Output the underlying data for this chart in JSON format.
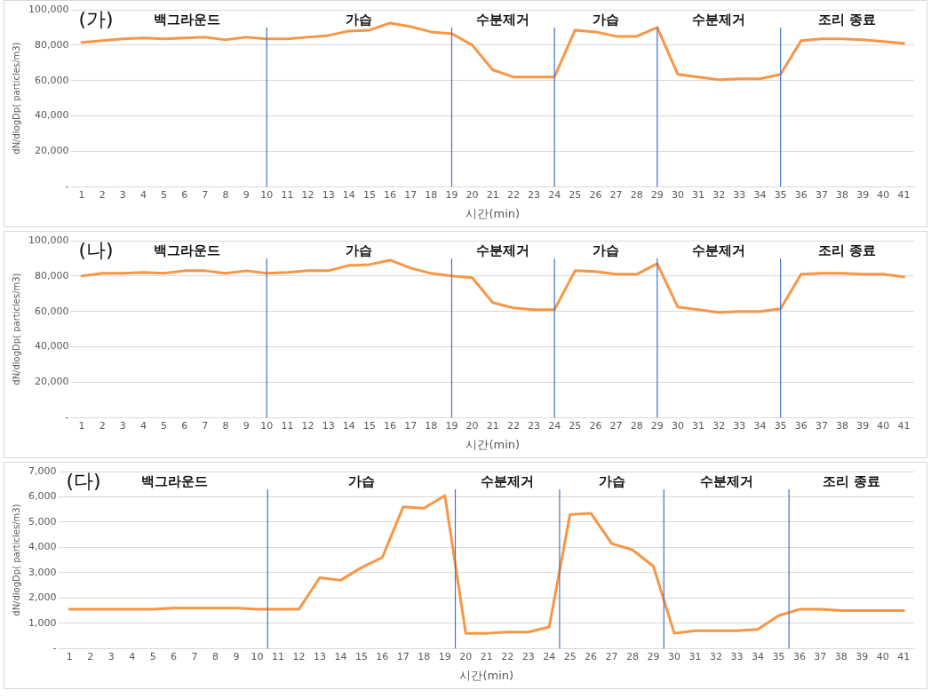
{
  "chart_data": [
    {
      "type": "line",
      "title": "(가)",
      "xlabel": "시간(min)",
      "ylabel": "dN/dlogDp( particles/m3)",
      "x": [
        1,
        2,
        3,
        4,
        5,
        6,
        7,
        8,
        9,
        10,
        11,
        12,
        13,
        14,
        15,
        16,
        17,
        18,
        19,
        20,
        21,
        22,
        23,
        24,
        25,
        26,
        27,
        28,
        29,
        30,
        31,
        32,
        33,
        34,
        35,
        36,
        37,
        38,
        39,
        40,
        41
      ],
      "series": [
        {
          "color": "#f79646",
          "values": [
            81500,
            82500,
            83500,
            84000,
            83500,
            84000,
            84500,
            83000,
            84500,
            83500,
            83500,
            84500,
            85500,
            88000,
            88500,
            92500,
            90500,
            87500,
            86500,
            80000,
            66000,
            62000,
            62000,
            62000,
            88500,
            87500,
            85000,
            85000,
            90000,
            63500,
            62000,
            60500,
            61000,
            61000,
            63500,
            82500,
            83500,
            83500,
            83000,
            82000,
            81000
          ]
        }
      ],
      "xlim": [
        0.5,
        41.5
      ],
      "xticks": [
        1,
        2,
        3,
        4,
        5,
        6,
        7,
        8,
        9,
        10,
        11,
        12,
        13,
        14,
        15,
        16,
        17,
        18,
        19,
        20,
        21,
        22,
        23,
        24,
        25,
        26,
        27,
        28,
        29,
        30,
        31,
        32,
        33,
        34,
        35,
        36,
        37,
        38,
        39,
        40,
        41
      ],
      "ylim": [
        0,
        100000
      ],
      "yticks": [
        {
          "value": 0,
          "label": "-"
        },
        {
          "value": 20000,
          "label": "20,000"
        },
        {
          "value": 40000,
          "label": "40,000"
        },
        {
          "value": 60000,
          "label": "60,000"
        },
        {
          "value": 80000,
          "label": "80,000"
        },
        {
          "value": 100000,
          "label": "100,000"
        }
      ],
      "grid": "y",
      "legend": false,
      "marker": "none",
      "line_style": "solid",
      "ref_lines": [
        {
          "axis": "x",
          "value": 10,
          "color": "#4472c4"
        },
        {
          "axis": "x",
          "value": 19,
          "color": "#4472c4"
        },
        {
          "axis": "x",
          "value": 24,
          "color": "#4472c4"
        },
        {
          "axis": "x",
          "value": 29,
          "color": "#4472c4"
        },
        {
          "axis": "x",
          "value": 35,
          "color": "#4472c4"
        }
      ],
      "annotations": [
        "백그라운드",
        "가습",
        "수분제거",
        "가습",
        "수분제거",
        "조리 종료"
      ]
    },
    {
      "type": "line",
      "title": "(나)",
      "xlabel": "시간(min)",
      "ylabel": "dN/dlogDp( particles/m3)",
      "x": [
        1,
        2,
        3,
        4,
        5,
        6,
        7,
        8,
        9,
        10,
        11,
        12,
        13,
        14,
        15,
        16,
        17,
        18,
        19,
        20,
        21,
        22,
        23,
        24,
        25,
        26,
        27,
        28,
        29,
        30,
        31,
        32,
        33,
        34,
        35,
        36,
        37,
        38,
        39,
        40,
        41
      ],
      "series": [
        {
          "color": "#f79646",
          "values": [
            80000,
            81500,
            81500,
            82000,
            81500,
            83000,
            83000,
            81500,
            83000,
            81500,
            82000,
            83000,
            83000,
            86000,
            86500,
            89000,
            84500,
            81500,
            80000,
            79000,
            65000,
            62000,
            61000,
            61000,
            83000,
            82500,
            81000,
            81000,
            87000,
            62500,
            61000,
            59500,
            60000,
            60000,
            61500,
            81000,
            81500,
            81500,
            81000,
            81000,
            79500
          ]
        }
      ],
      "xlim": [
        0.5,
        41.5
      ],
      "xticks": [
        1,
        2,
        3,
        4,
        5,
        6,
        7,
        8,
        9,
        10,
        11,
        12,
        13,
        14,
        15,
        16,
        17,
        18,
        19,
        20,
        21,
        22,
        23,
        24,
        25,
        26,
        27,
        28,
        29,
        30,
        31,
        32,
        33,
        34,
        35,
        36,
        37,
        38,
        39,
        40,
        41
      ],
      "ylim": [
        0,
        100000
      ],
      "yticks": [
        {
          "value": 0,
          "label": "-"
        },
        {
          "value": 20000,
          "label": "20,000"
        },
        {
          "value": 40000,
          "label": "40,000"
        },
        {
          "value": 60000,
          "label": "60,000"
        },
        {
          "value": 80000,
          "label": "80,000"
        },
        {
          "value": 100000,
          "label": "100,000"
        }
      ],
      "grid": "y",
      "legend": false,
      "marker": "none",
      "line_style": "solid",
      "ref_lines": [
        {
          "axis": "x",
          "value": 10,
          "color": "#4472c4"
        },
        {
          "axis": "x",
          "value": 19,
          "color": "#4472c4"
        },
        {
          "axis": "x",
          "value": 24,
          "color": "#4472c4"
        },
        {
          "axis": "x",
          "value": 29,
          "color": "#4472c4"
        },
        {
          "axis": "x",
          "value": 35,
          "color": "#4472c4"
        }
      ],
      "annotations": [
        "백그라운드",
        "가습",
        "수분제거",
        "가습",
        "수분제거",
        "조리 종료"
      ]
    },
    {
      "type": "line",
      "title": "(다)",
      "xlabel": "시간(min)",
      "ylabel": "dN/dlogDp( particles/m3)",
      "x": [
        1,
        2,
        3,
        4,
        5,
        6,
        7,
        8,
        9,
        10,
        11,
        12,
        13,
        14,
        15,
        16,
        17,
        18,
        19,
        20,
        21,
        22,
        23,
        24,
        25,
        26,
        27,
        28,
        29,
        30,
        31,
        32,
        33,
        34,
        35,
        36,
        37,
        38,
        39,
        40,
        41
      ],
      "series": [
        {
          "color": "#f79646",
          "values": [
            1550,
            1550,
            1550,
            1550,
            1550,
            1600,
            1600,
            1600,
            1600,
            1550,
            1550,
            1550,
            2800,
            2700,
            3200,
            3600,
            5600,
            5550,
            6050,
            600,
            600,
            650,
            650,
            850,
            5300,
            5350,
            4150,
            3900,
            3250,
            600,
            700,
            700,
            700,
            750,
            1300,
            1550,
            1550,
            1500,
            1500,
            1500,
            1500
          ]
        }
      ],
      "xlim": [
        0.5,
        41.5
      ],
      "xticks": [
        1,
        2,
        3,
        4,
        5,
        6,
        7,
        8,
        9,
        10,
        11,
        12,
        13,
        14,
        15,
        16,
        17,
        18,
        19,
        20,
        21,
        22,
        23,
        24,
        25,
        26,
        27,
        28,
        29,
        30,
        31,
        32,
        33,
        34,
        35,
        36,
        37,
        38,
        39,
        40,
        41
      ],
      "ylim": [
        0,
        7000
      ],
      "yticks": [
        {
          "value": 0,
          "label": "-"
        },
        {
          "value": 1000,
          "label": "1,000"
        },
        {
          "value": 2000,
          "label": "2,000"
        },
        {
          "value": 3000,
          "label": "3,000"
        },
        {
          "value": 4000,
          "label": "4,000"
        },
        {
          "value": 5000,
          "label": "5,000"
        },
        {
          "value": 6000,
          "label": "6,000"
        },
        {
          "value": 7000,
          "label": "7,000"
        }
      ],
      "grid": "y",
      "legend": false,
      "marker": "none",
      "line_style": "solid",
      "ref_lines": [
        {
          "axis": "x",
          "value": 10.5,
          "color": "#4472c4"
        },
        {
          "axis": "x",
          "value": 19.5,
          "color": "#4472c4"
        },
        {
          "axis": "x",
          "value": 24.5,
          "color": "#4472c4"
        },
        {
          "axis": "x",
          "value": 29.5,
          "color": "#4472c4"
        },
        {
          "axis": "x",
          "value": 35.5,
          "color": "#4472c4"
        }
      ],
      "annotations": [
        "백그라운드",
        "가습",
        "수분제거",
        "가습",
        "수분제거",
        "조리 종료"
      ]
    }
  ]
}
